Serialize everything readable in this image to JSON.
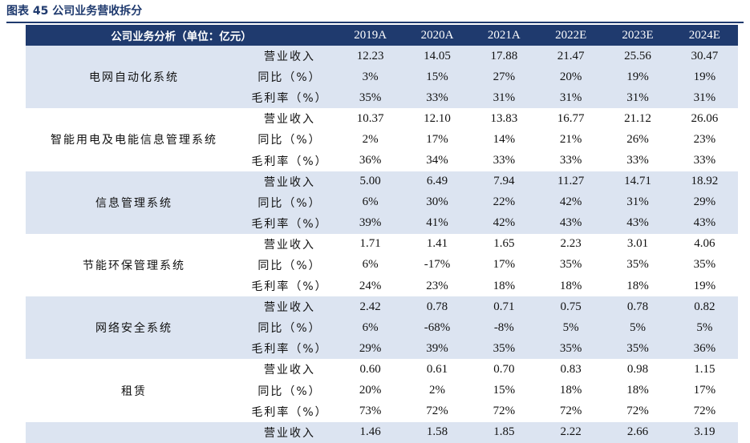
{
  "caption": "图表 45 公司业务营收拆分",
  "table": {
    "header_label": "公司业务分析（单位：亿元）",
    "years": [
      "2019A",
      "2020A",
      "2021A",
      "2022E",
      "2023E",
      "2024E"
    ],
    "segments": [
      {
        "name": "电网自动化系统",
        "rows": [
          {
            "metric": "营业收入",
            "values": [
              "12.23",
              "14.05",
              "17.88",
              "21.47",
              "25.56",
              "30.47"
            ]
          },
          {
            "metric": "同比（%）",
            "values": [
              "3%",
              "15%",
              "27%",
              "20%",
              "19%",
              "19%"
            ]
          },
          {
            "metric": "毛利率（%）",
            "values": [
              "35%",
              "33%",
              "31%",
              "31%",
              "31%",
              "31%"
            ]
          }
        ]
      },
      {
        "name": "智能用电及电能信息管理系统",
        "rows": [
          {
            "metric": "营业收入",
            "values": [
              "10.37",
              "12.10",
              "13.83",
              "16.77",
              "21.12",
              "26.06"
            ]
          },
          {
            "metric": "同比（%）",
            "values": [
              "2%",
              "17%",
              "14%",
              "21%",
              "26%",
              "23%"
            ]
          },
          {
            "metric": "毛利率（%）",
            "values": [
              "36%",
              "34%",
              "33%",
              "33%",
              "33%",
              "33%"
            ]
          }
        ]
      },
      {
        "name": "信息管理系统",
        "rows": [
          {
            "metric": "营业收入",
            "values": [
              "5.00",
              "6.49",
              "7.94",
              "11.27",
              "14.71",
              "18.92"
            ]
          },
          {
            "metric": "同比（%）",
            "values": [
              "6%",
              "30%",
              "22%",
              "42%",
              "31%",
              "29%"
            ]
          },
          {
            "metric": "毛利率（%）",
            "values": [
              "39%",
              "41%",
              "42%",
              "43%",
              "43%",
              "43%"
            ]
          }
        ]
      },
      {
        "name": "节能环保管理系统",
        "rows": [
          {
            "metric": "营业收入",
            "values": [
              "1.71",
              "1.41",
              "1.65",
              "2.23",
              "3.01",
              "4.06"
            ]
          },
          {
            "metric": "同比（%）",
            "values": [
              "6%",
              "-17%",
              "17%",
              "35%",
              "35%",
              "35%"
            ]
          },
          {
            "metric": "毛利率（%）",
            "values": [
              "24%",
              "23%",
              "18%",
              "18%",
              "18%",
              "19%"
            ]
          }
        ]
      },
      {
        "name": "网络安全系统",
        "rows": [
          {
            "metric": "营业收入",
            "values": [
              "2.42",
              "0.78",
              "0.71",
              "0.75",
              "0.78",
              "0.82"
            ]
          },
          {
            "metric": "同比（%）",
            "values": [
              "6%",
              "-68%",
              "-8%",
              "5%",
              "5%",
              "5%"
            ]
          },
          {
            "metric": "毛利率（%）",
            "values": [
              "29%",
              "39%",
              "35%",
              "35%",
              "35%",
              "36%"
            ]
          }
        ]
      },
      {
        "name": "租赁",
        "rows": [
          {
            "metric": "营业收入",
            "values": [
              "0.60",
              "0.61",
              "0.70",
              "0.83",
              "0.98",
              "1.15"
            ]
          },
          {
            "metric": "同比（%）",
            "values": [
              "20%",
              "2%",
              "15%",
              "18%",
              "18%",
              "17%"
            ]
          },
          {
            "metric": "毛利率（%）",
            "values": [
              "73%",
              "72%",
              "72%",
              "72%",
              "72%",
              "72%"
            ]
          }
        ]
      },
      {
        "name": "",
        "rows": [
          {
            "metric": "营业收入",
            "values": [
              "1.46",
              "1.58",
              "1.85",
              "2.22",
              "2.66",
              "3.19"
            ]
          }
        ]
      }
    ]
  },
  "colors": {
    "header_bg": "#1f3a6e",
    "shade_bg": "#dce4f1",
    "caption": "#1f3a6e"
  }
}
